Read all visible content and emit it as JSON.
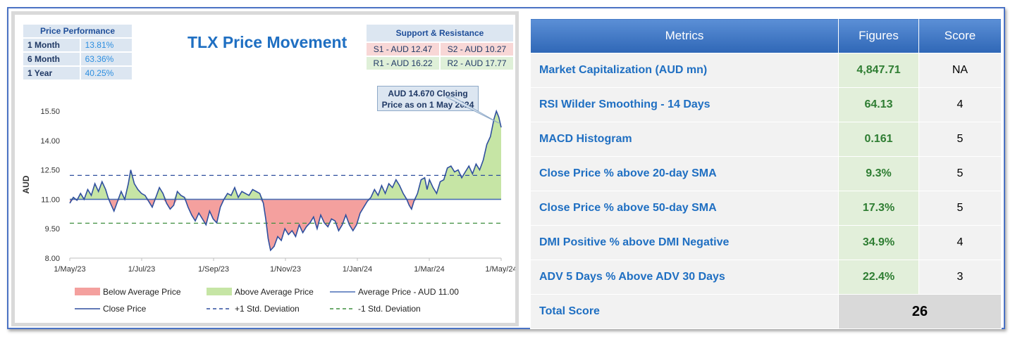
{
  "performance": {
    "header": "Price Performance",
    "rows": [
      {
        "label": "1 Month",
        "value": "13.81%"
      },
      {
        "label": "6 Month",
        "value": "63.36%"
      },
      {
        "label": "1 Year",
        "value": "40.25%"
      }
    ]
  },
  "support_resistance": {
    "header": "Support & Resistance",
    "s1": "S1 - AUD 12.47",
    "s2": "S2 - AUD 10.27",
    "r1": "R1 - AUD 16.22",
    "r2": "R2 - AUD 17.77"
  },
  "callout": {
    "line1": "AUD 14.670 Closing",
    "line2": "Price as on 1 May 2024"
  },
  "chart_data": {
    "type": "area",
    "title": "TLX Price Movement",
    "ylabel": "AUD",
    "xlabel": "",
    "ylim": [
      8.0,
      15.5
    ],
    "yticks": [
      "8.00",
      "9.50",
      "11.00",
      "12.50",
      "14.00",
      "15.50"
    ],
    "xticks": [
      "1/May/23",
      "1/Jul/23",
      "1/Sep/23",
      "1/Nov/23",
      "1/Jan/24",
      "1/Mar/24",
      "1/May/24"
    ],
    "average": 11.0,
    "plus_1sd": 12.22,
    "minus_1sd": 9.78,
    "close_price": [
      [
        0,
        10.8
      ],
      [
        3,
        11.1
      ],
      [
        6,
        10.95
      ],
      [
        9,
        11.3
      ],
      [
        12,
        11.0
      ],
      [
        15,
        11.5
      ],
      [
        18,
        11.2
      ],
      [
        21,
        11.8
      ],
      [
        24,
        11.4
      ],
      [
        27,
        11.9
      ],
      [
        30,
        11.5
      ],
      [
        32,
        11.1
      ],
      [
        34,
        10.8
      ],
      [
        37,
        10.4
      ],
      [
        40,
        10.9
      ],
      [
        43,
        11.4
      ],
      [
        46,
        11.0
      ],
      [
        49,
        11.8
      ],
      [
        51,
        12.5
      ],
      [
        54,
        11.8
      ],
      [
        57,
        11.5
      ],
      [
        60,
        11.3
      ],
      [
        63,
        11.2
      ],
      [
        66,
        10.9
      ],
      [
        69,
        10.6
      ],
      [
        72,
        11.1
      ],
      [
        75,
        11.6
      ],
      [
        78,
        11.3
      ],
      [
        81,
        10.8
      ],
      [
        84,
        10.5
      ],
      [
        87,
        10.7
      ],
      [
        90,
        11.4
      ],
      [
        93,
        11.2
      ],
      [
        96,
        11.1
      ],
      [
        99,
        10.6
      ],
      [
        102,
        10.2
      ],
      [
        105,
        9.9
      ],
      [
        108,
        10.3
      ],
      [
        111,
        10.0
      ],
      [
        114,
        9.7
      ],
      [
        117,
        10.4
      ],
      [
        120,
        10.0
      ],
      [
        123,
        9.8
      ],
      [
        126,
        10.6
      ],
      [
        129,
        11.0
      ],
      [
        132,
        11.3
      ],
      [
        135,
        11.2
      ],
      [
        138,
        11.6
      ],
      [
        141,
        11.1
      ],
      [
        144,
        11.4
      ],
      [
        147,
        11.3
      ],
      [
        150,
        11.2
      ],
      [
        153,
        11.5
      ],
      [
        156,
        11.4
      ],
      [
        159,
        11.3
      ],
      [
        162,
        10.8
      ],
      [
        164,
        10.0
      ],
      [
        166,
        9.0
      ],
      [
        168,
        8.4
      ],
      [
        171,
        8.6
      ],
      [
        174,
        9.1
      ],
      [
        177,
        8.9
      ],
      [
        180,
        9.5
      ],
      [
        183,
        9.2
      ],
      [
        186,
        9.4
      ],
      [
        189,
        9.1
      ],
      [
        192,
        9.7
      ],
      [
        195,
        9.3
      ],
      [
        198,
        9.6
      ],
      [
        201,
        9.8
      ],
      [
        204,
        10.1
      ],
      [
        207,
        9.5
      ],
      [
        210,
        10.2
      ],
      [
        213,
        9.8
      ],
      [
        216,
        9.6
      ],
      [
        219,
        10.0
      ],
      [
        222,
        9.9
      ],
      [
        225,
        9.4
      ],
      [
        228,
        9.7
      ],
      [
        231,
        10.2
      ],
      [
        234,
        9.7
      ],
      [
        237,
        9.4
      ],
      [
        240,
        9.7
      ],
      [
        243,
        10.3
      ],
      [
        246,
        10.6
      ],
      [
        249,
        10.9
      ],
      [
        252,
        11.1
      ],
      [
        255,
        11.5
      ],
      [
        258,
        11.2
      ],
      [
        261,
        11.7
      ],
      [
        264,
        11.3
      ],
      [
        267,
        11.8
      ],
      [
        270,
        11.6
      ],
      [
        273,
        12.0
      ],
      [
        276,
        11.7
      ],
      [
        279,
        11.3
      ],
      [
        282,
        11.0
      ],
      [
        284,
        10.7
      ],
      [
        286,
        10.5
      ],
      [
        288,
        10.9
      ],
      [
        291,
        11.3
      ],
      [
        294,
        12.0
      ],
      [
        297,
        12.1
      ],
      [
        299,
        11.5
      ],
      [
        301,
        12.0
      ],
      [
        304,
        11.6
      ],
      [
        307,
        11.3
      ],
      [
        310,
        11.9
      ],
      [
        313,
        12.0
      ],
      [
        316,
        12.6
      ],
      [
        319,
        12.7
      ],
      [
        322,
        12.4
      ],
      [
        325,
        12.5
      ],
      [
        328,
        12.1
      ],
      [
        331,
        12.4
      ],
      [
        334,
        12.7
      ],
      [
        337,
        12.3
      ],
      [
        340,
        12.8
      ],
      [
        343,
        12.5
      ],
      [
        346,
        13.0
      ],
      [
        349,
        13.8
      ],
      [
        352,
        14.2
      ],
      [
        355,
        15.1
      ],
      [
        357,
        15.5
      ],
      [
        359,
        15.2
      ],
      [
        361,
        14.67
      ]
    ],
    "legend": [
      {
        "name": "Below Average Price",
        "kind": "fill",
        "color": "#f4a09e"
      },
      {
        "name": "Above Average Price",
        "kind": "fill",
        "color": "#c6e5a5"
      },
      {
        "name": "Average Price - AUD 11.00",
        "kind": "line",
        "color": "#4a6fb5"
      },
      {
        "name": "Close Price",
        "kind": "line",
        "color": "#2f4f9e"
      },
      {
        "name": "+1 Std. Deviation",
        "kind": "dash",
        "color": "#2f4f9e"
      },
      {
        "name": "-1 Std. Deviation",
        "kind": "dash",
        "color": "#3f8f3f"
      }
    ]
  },
  "metrics": {
    "headers": [
      "Metrics",
      "Figures",
      "Score"
    ],
    "rows": [
      {
        "metric": "Market Capitalization (AUD mn)",
        "figure": "4,847.71",
        "score": "NA"
      },
      {
        "metric": "RSI Wilder Smoothing - 14 Days",
        "figure": "64.13",
        "score": "4"
      },
      {
        "metric": "MACD Histogram",
        "figure": "0.161",
        "score": "5"
      },
      {
        "metric": "Close Price % above 20-day SMA",
        "figure": "9.3%",
        "score": "5"
      },
      {
        "metric": "Close Price % above 50-day SMA",
        "figure": "17.3%",
        "score": "5"
      },
      {
        "metric": "DMI Positive % above DMI Negative",
        "figure": "34.9%",
        "score": "4"
      },
      {
        "metric": "ADV 5 Days % Above ADV 30 Days",
        "figure": "22.4%",
        "score": "3"
      }
    ],
    "total_label": "Total Score",
    "total_value": "26"
  },
  "colors": {
    "above_fill": "#c6e5a5",
    "below_fill": "#f4a09e",
    "close_line": "#2f4f9e",
    "title": "#1f6fc2"
  }
}
